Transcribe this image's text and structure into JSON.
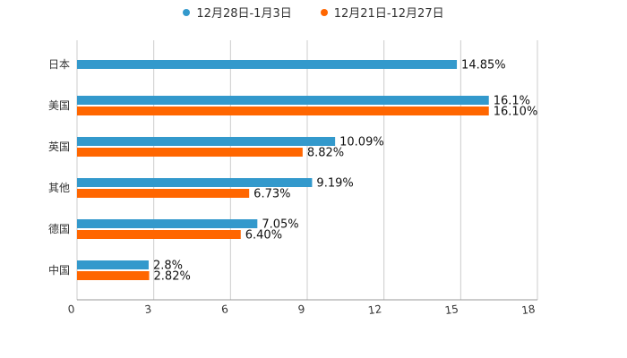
{
  "chart_data": {
    "type": "bar",
    "orientation": "horizontal",
    "categories": [
      "日本",
      "美国",
      "英国",
      "其他",
      "德国",
      "中国"
    ],
    "series": [
      {
        "name": "12月28日-1月3日",
        "color": "#3399cc",
        "values": [
          14.85,
          16.1,
          10.09,
          9.19,
          7.05,
          2.8
        ],
        "labels": [
          "14.85%",
          "16.1%",
          "10.09%",
          "9.19%",
          "7.05%",
          "2.8%"
        ]
      },
      {
        "name": "12月21日-12月27日",
        "color": "#ff6600",
        "values": [
          null,
          16.1,
          8.82,
          6.73,
          6.4,
          2.82
        ],
        "labels": [
          "",
          "16.10%",
          "8.82%",
          "6.73%",
          "6.40%",
          "2.82%"
        ]
      }
    ],
    "xlim": [
      0,
      18
    ],
    "xticks": [
      0,
      3,
      6,
      9,
      12,
      15,
      18
    ],
    "xtick_labels": [
      "0",
      "3",
      "6",
      "9",
      "12",
      "15",
      "18"
    ],
    "grid": true,
    "legend": "top-center",
    "title": "",
    "xlabel": "",
    "ylabel": ""
  }
}
